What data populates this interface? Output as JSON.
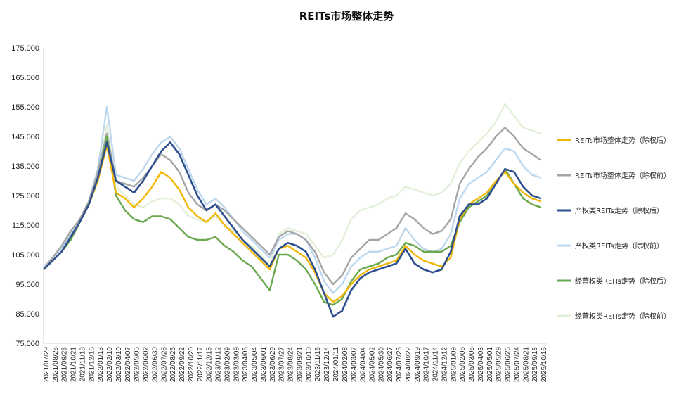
{
  "chart_data": {
    "type": "line",
    "title": "REITs市场整体走势",
    "xlabel": "",
    "ylabel": "",
    "ylim": [
      75,
      175
    ],
    "yticks": [
      "75.000",
      "85.000",
      "95.000",
      "105.000",
      "115.000",
      "125.000",
      "135.000",
      "145.000",
      "155.000",
      "165.000",
      "175.000"
    ],
    "grid": false,
    "legend_position": "right",
    "x_tick_labels": [
      "2021/07/29",
      "2021/08/26",
      "2021/09/23",
      "2021/10/21",
      "2021/11/18",
      "2021/12/16",
      "2022/01/13",
      "2022/02/10",
      "2022/03/10",
      "2022/04/07",
      "2022/05/05",
      "2022/06/02",
      "2022/06/30",
      "2022/07/28",
      "2022/08/25",
      "2022/09/22",
      "2022/10/20",
      "2022/11/17",
      "2022/12/15",
      "2023/01/12",
      "2023/02/09",
      "2023/03/09",
      "2023/04/06",
      "2023/05/04",
      "2023/06/01",
      "2023/06/29",
      "2023/07/27",
      "2023/08/24",
      "2023/09/21",
      "2023/10/19",
      "2023/11/16",
      "2023/12/14",
      "2024/01/11",
      "2024/02/08",
      "2024/03/07",
      "2024/04/04",
      "2024/05/02",
      "2024/05/30",
      "2024/06/27",
      "2024/07/25",
      "2024/08/22",
      "2024/09/19",
      "2024/10/17",
      "2024/11/14",
      "2024/12/12",
      "2025/01/09",
      "2025/02/06",
      "2025/03/06",
      "2025/04/03",
      "2025/05/01",
      "2025/05/29",
      "2025/06/26",
      "2025/07/24",
      "2025/08/21",
      "2025/09/18",
      "2025/10/16"
    ],
    "series": [
      {
        "name": "REITs市场整体走势（除权后）",
        "color": "#f2b705",
        "width": 2.4,
        "values": [
          100,
          103,
          106,
          111,
          116,
          122,
          130,
          142,
          126,
          124,
          121,
          124,
          128,
          133,
          131,
          127,
          121,
          118,
          116,
          119,
          115,
          112,
          109,
          106,
          103,
          100,
          107,
          108,
          106,
          104,
          99,
          92,
          89,
          91,
          95,
          98,
          100,
          101,
          102,
          103,
          108,
          105,
          103,
          102,
          101,
          104,
          117,
          122,
          124,
          126,
          130,
          133,
          129,
          126,
          124,
          123
        ]
      },
      {
        "name": "REITs市场整体走势（除权前）",
        "color": "#a5a5a5",
        "width": 2.4,
        "values": [
          100,
          104,
          108,
          113,
          117,
          123,
          133,
          146,
          130,
          129,
          128,
          131,
          135,
          139,
          137,
          133,
          126,
          122,
          120,
          122,
          120,
          117,
          114,
          111,
          108,
          105,
          111,
          113,
          112,
          110,
          106,
          99,
          95,
          98,
          104,
          107,
          110,
          110,
          112,
          114,
          119,
          117,
          114,
          112,
          113,
          117,
          129,
          134,
          138,
          141,
          145,
          148,
          145,
          141,
          139,
          137
        ]
      },
      {
        "name": "产权类REITs走势（除权后）",
        "color": "#2e4f8f",
        "width": 2.6,
        "values": [
          100,
          103,
          106,
          111,
          116,
          122,
          131,
          143,
          130,
          128,
          126,
          130,
          135,
          140,
          143,
          139,
          132,
          125,
          120,
          122,
          118,
          114,
          110,
          107,
          104,
          101,
          107,
          109,
          108,
          106,
          100,
          92,
          84,
          86,
          93,
          97,
          99,
          100,
          101,
          102,
          107,
          102,
          100,
          99,
          100,
          106,
          118,
          122,
          122,
          124,
          129,
          134,
          133,
          128,
          125,
          124
        ]
      },
      {
        "name": "产权类REITs走势（除权前）",
        "color": "#bdd7ee",
        "width": 2.4,
        "values": [
          101,
          104,
          107,
          112,
          117,
          123,
          134,
          155,
          132,
          131,
          130,
          134,
          139,
          143,
          145,
          141,
          134,
          127,
          122,
          124,
          121,
          117,
          113,
          110,
          107,
          104,
          110,
          112,
          112,
          110,
          104,
          96,
          92,
          95,
          101,
          104,
          106,
          106,
          107,
          108,
          114,
          110,
          107,
          106,
          107,
          112,
          124,
          129,
          131,
          133,
          137,
          141,
          140,
          135,
          132,
          131
        ]
      },
      {
        "name": "经营权类REITs走势（除权后）",
        "color": "#6aa84f",
        "width": 2.4,
        "values": [
          100,
          103,
          106,
          110,
          116,
          122,
          130,
          145,
          125,
          120,
          117,
          116,
          118,
          118,
          117,
          114,
          111,
          110,
          110,
          111,
          108,
          106,
          103,
          101,
          97,
          93,
          105,
          105,
          103,
          100,
          95,
          89,
          88,
          90,
          96,
          100,
          101,
          102,
          104,
          105,
          109,
          108,
          106,
          106,
          106,
          108,
          116,
          121,
          123,
          125,
          129,
          134,
          129,
          124,
          122,
          121
        ]
      },
      {
        "name": "经营权类REITs走势（除权前）",
        "color": "#e2f0d9",
        "width": 2.4,
        "values": [
          101,
          104,
          107,
          112,
          117,
          123,
          132,
          149,
          128,
          125,
          122,
          121,
          123,
          124,
          124,
          122,
          118,
          117,
          116,
          118,
          115,
          113,
          110,
          108,
          105,
          101,
          112,
          114,
          113,
          112,
          108,
          104,
          105,
          110,
          117,
          120,
          121,
          122,
          124,
          125,
          128,
          127,
          126,
          125,
          126,
          129,
          136,
          140,
          143,
          146,
          150,
          156,
          152,
          148,
          147,
          146
        ]
      }
    ]
  }
}
